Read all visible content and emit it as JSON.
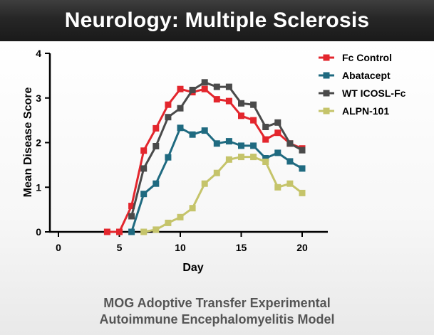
{
  "header": {
    "title": "Neurology: Multiple Sclerosis"
  },
  "caption": {
    "line1": "MOG Adoptive Transfer Experimental",
    "line2": "Autoimmune Encephalomyelitis Model"
  },
  "chart_data": {
    "type": "line",
    "title": "",
    "xlabel": "Day",
    "ylabel": "Mean Disease Score",
    "xlim": [
      0,
      22
    ],
    "ylim": [
      0,
      4
    ],
    "xticks": [
      0,
      5,
      10,
      15,
      20
    ],
    "yticks": [
      0,
      1,
      2,
      3,
      4
    ],
    "legend_position": "top-right",
    "series": [
      {
        "name": "Fc Control",
        "color": "#e3262d",
        "x": [
          4,
          5,
          6,
          7,
          8,
          9,
          10,
          11,
          12,
          13,
          14,
          15,
          16,
          17,
          18,
          19,
          20
        ],
        "y": [
          0.0,
          0.0,
          0.58,
          1.82,
          2.32,
          2.85,
          3.2,
          3.13,
          3.2,
          2.97,
          2.93,
          2.6,
          2.5,
          2.07,
          2.22,
          1.98,
          1.87
        ]
      },
      {
        "name": "Abatacept",
        "color": "#1f6a80",
        "x": [
          6,
          7,
          8,
          9,
          10,
          11,
          12,
          13,
          14,
          15,
          16,
          17,
          18,
          19,
          20
        ],
        "y": [
          0.0,
          0.85,
          1.08,
          1.67,
          2.33,
          2.18,
          2.27,
          1.98,
          2.03,
          1.93,
          1.93,
          1.65,
          1.77,
          1.58,
          1.42
        ]
      },
      {
        "name": "WT ICOSL-Fc",
        "color": "#4a4a4a",
        "x": [
          6,
          7,
          8,
          9,
          10,
          11,
          12,
          13,
          14,
          15,
          16,
          17,
          18,
          19,
          20
        ],
        "y": [
          0.35,
          1.42,
          1.92,
          2.57,
          2.77,
          3.18,
          3.35,
          3.25,
          3.25,
          2.88,
          2.85,
          2.35,
          2.45,
          1.98,
          1.83
        ]
      },
      {
        "name": "ALPN-101",
        "color": "#c5c46a",
        "x": [
          7,
          8,
          9,
          10,
          11,
          12,
          13,
          14,
          15,
          16,
          17,
          18,
          19,
          20
        ],
        "y": [
          0.0,
          0.05,
          0.2,
          0.33,
          0.53,
          1.08,
          1.32,
          1.62,
          1.68,
          1.68,
          1.57,
          1.0,
          1.08,
          0.87
        ]
      }
    ]
  }
}
